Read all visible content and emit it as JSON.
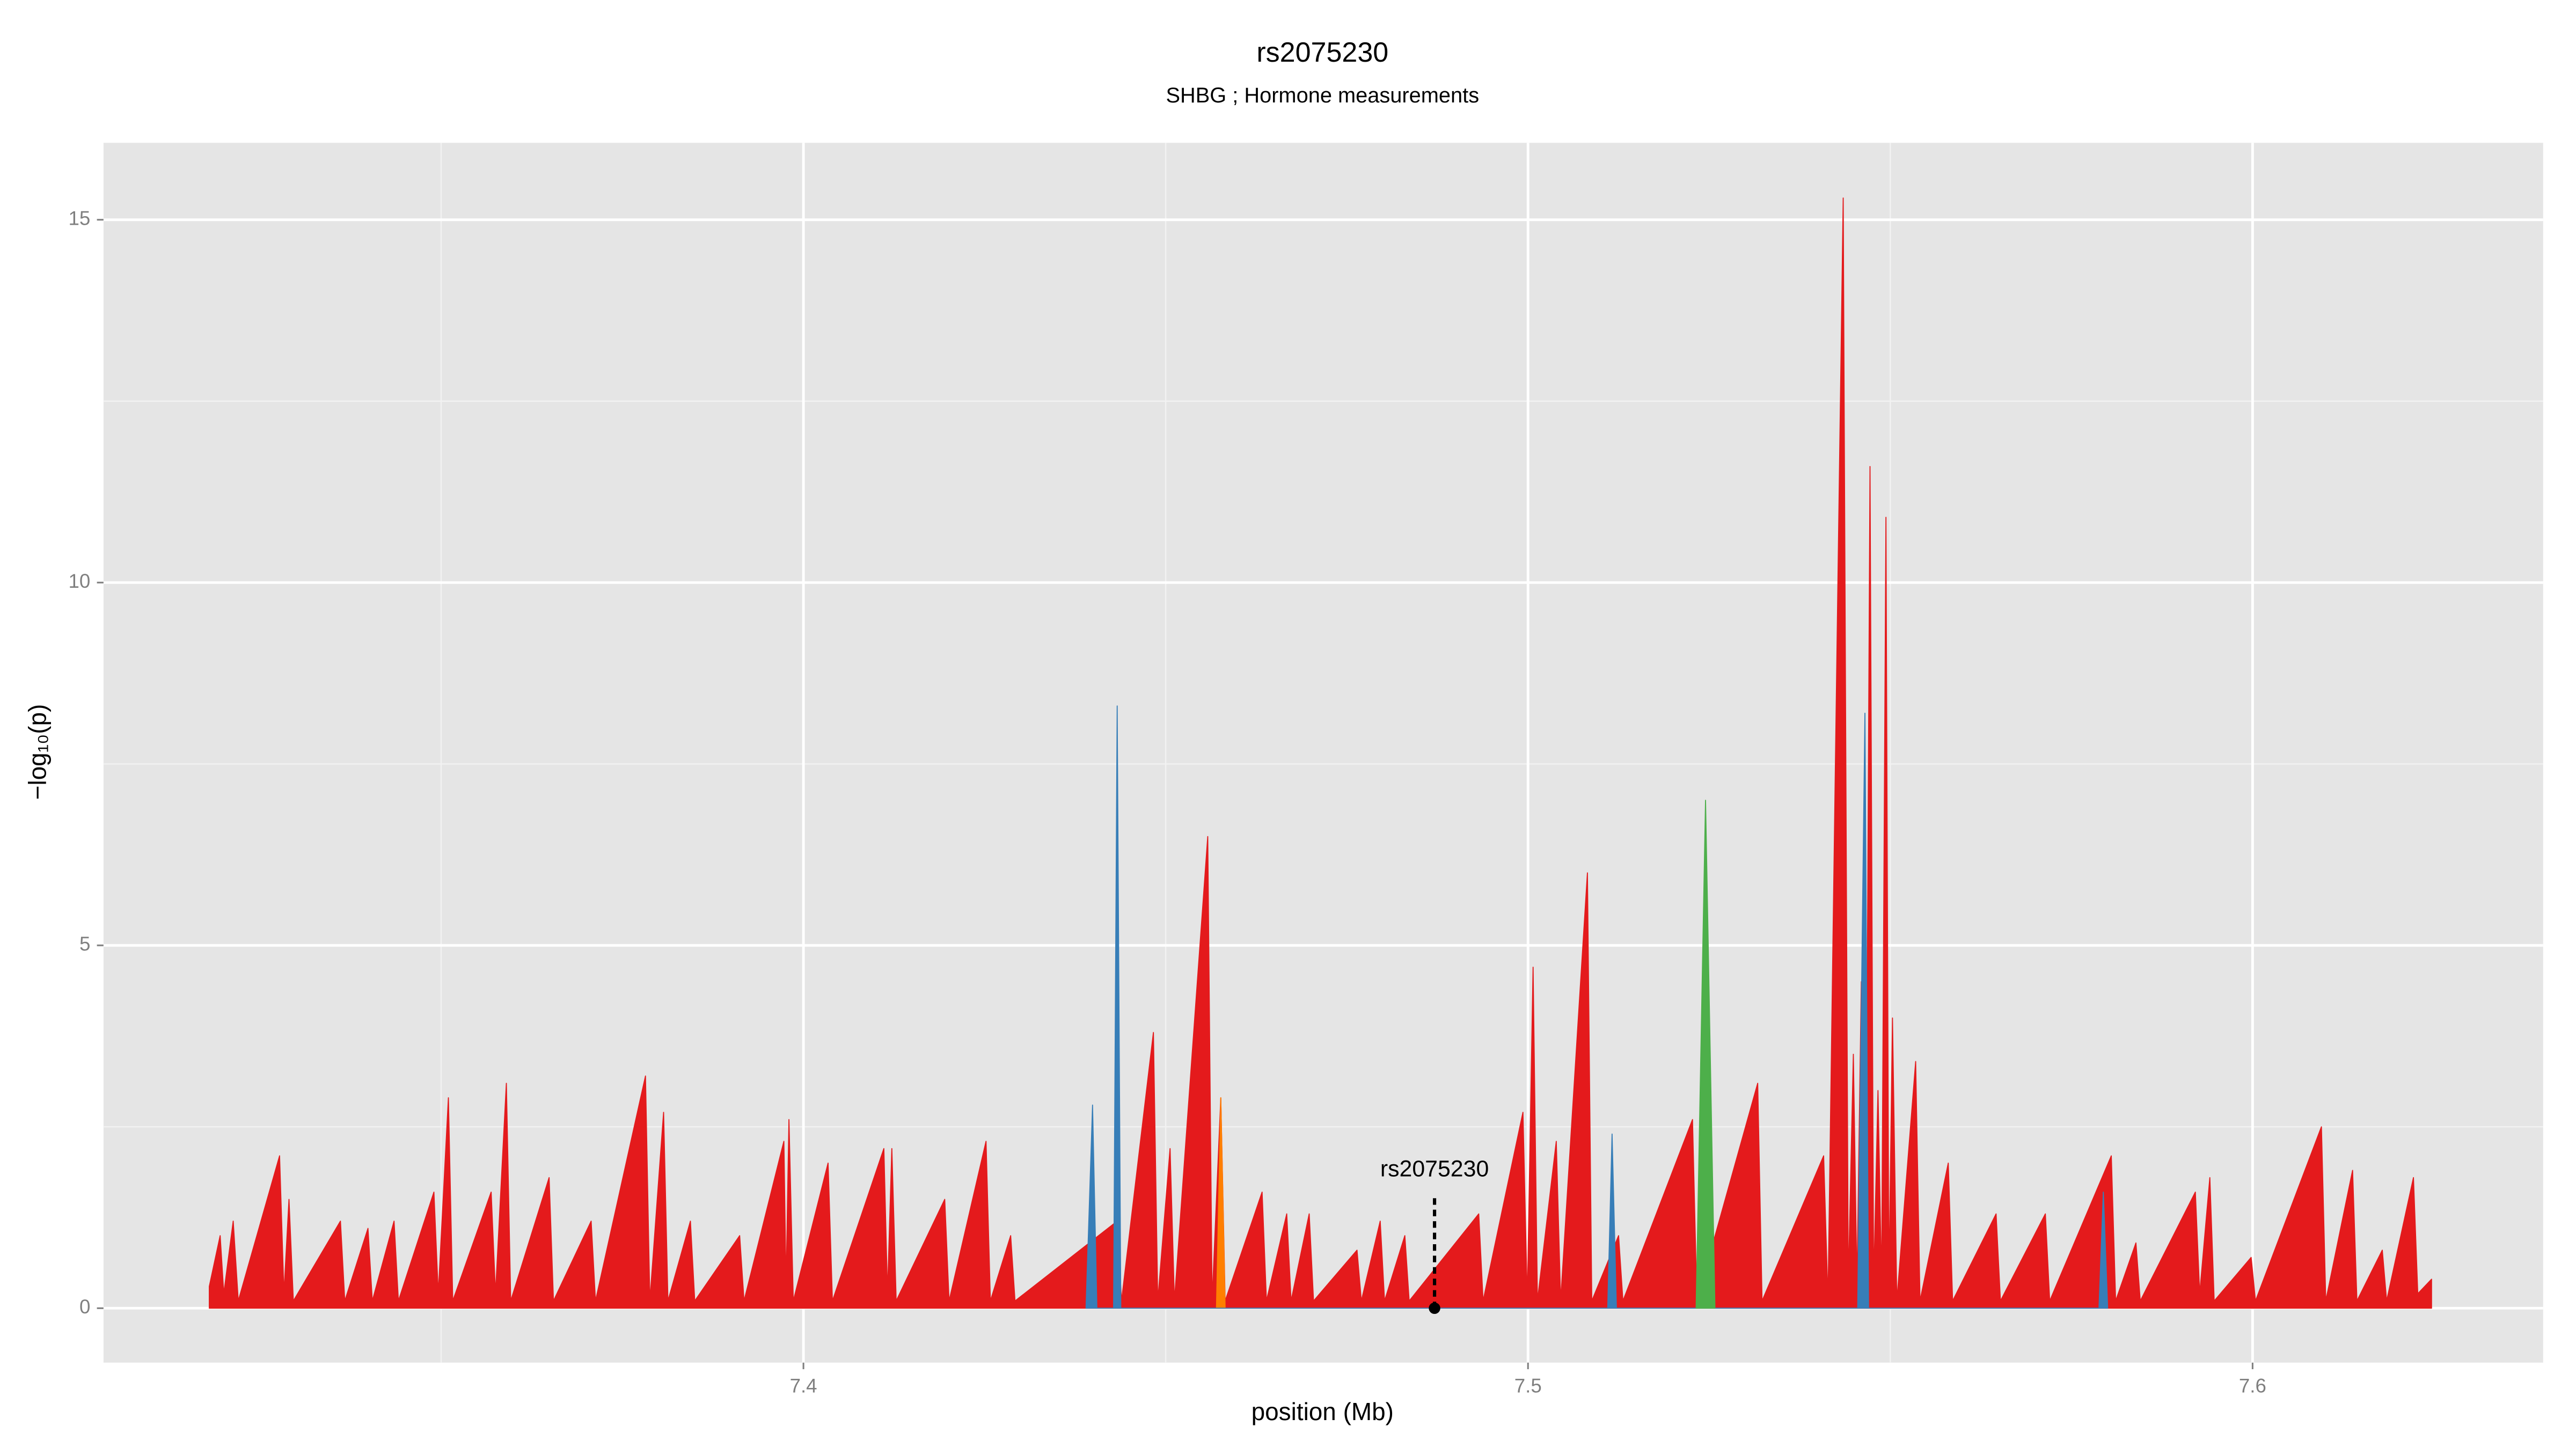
{
  "chart_data": {
    "type": "area",
    "title": "rs2075230",
    "subtitle": "SHBG ; Hormone measurements",
    "xlabel": "position (Mb)",
    "ylabel": "−log₁₀(p)",
    "xlim": [
      7.3034,
      7.6401
    ],
    "ylim": [
      -0.75,
      16.06
    ],
    "xticks": [
      7.4,
      7.5,
      7.6
    ],
    "yticks": [
      0,
      5,
      10,
      15
    ],
    "grid": true,
    "series": [
      {
        "color": "#e41a1c",
        "x": [
          7.318,
          7.3195,
          7.32,
          7.3213,
          7.322,
          7.3277,
          7.3283,
          7.329,
          7.3296,
          7.3361,
          7.3367,
          7.3399,
          7.3405,
          7.3435,
          7.3441,
          7.349,
          7.3496,
          7.351,
          7.3516,
          7.3569,
          7.3575,
          7.359,
          7.3596,
          7.3649,
          7.3655,
          7.3707,
          7.3713,
          7.3782,
          7.3788,
          7.3807,
          7.3813,
          7.3844,
          7.385,
          7.3912,
          7.3918,
          7.3973,
          7.3976,
          7.398,
          7.3986,
          7.4034,
          7.404,
          7.4111,
          7.4116,
          7.4122,
          7.4128,
          7.4195,
          7.4201,
          7.4252,
          7.4258,
          7.4286,
          7.4292,
          7.4433,
          7.4439,
          7.4483,
          7.4489,
          7.4506,
          7.4512,
          7.4558,
          7.4564,
          7.4576,
          7.4582,
          7.4633,
          7.4639,
          7.4667,
          7.4673,
          7.4698,
          7.4704,
          7.4764,
          7.477,
          7.4796,
          7.4802,
          7.483,
          7.4836,
          7.4932,
          7.4938,
          7.4993,
          7.4999,
          7.5007,
          7.5013,
          7.5039,
          7.5045,
          7.5082,
          7.5088,
          7.5125,
          7.5131,
          7.5227,
          7.5233,
          7.5317,
          7.5323,
          7.5408,
          7.5414,
          7.5435,
          7.5442,
          7.5449,
          7.5454,
          7.546,
          7.5466,
          7.5472,
          7.5477,
          7.5483,
          7.5488,
          7.5494,
          7.5498,
          7.5503,
          7.5509,
          7.5535,
          7.5541,
          7.558,
          7.5586,
          7.5646,
          7.5652,
          7.5714,
          7.572,
          7.5805,
          7.5811,
          7.5839,
          7.5845,
          7.5921,
          7.5927,
          7.5941,
          7.5947,
          7.5998,
          7.6004,
          7.6095,
          7.6101,
          7.6138,
          7.6144,
          7.6179,
          7.6185,
          7.6222,
          7.6228,
          7.6247
        ],
        "values": [
          0.3,
          1.0,
          0.2,
          1.2,
          0.1,
          2.1,
          0.2,
          1.5,
          0.1,
          1.2,
          0.1,
          1.1,
          0.1,
          1.2,
          0.1,
          1.6,
          0.2,
          2.9,
          0.1,
          1.6,
          0.2,
          3.1,
          0.1,
          1.8,
          0.1,
          1.2,
          0.1,
          3.2,
          0.1,
          2.7,
          0.1,
          1.2,
          0.1,
          1.0,
          0.1,
          2.3,
          0.3,
          2.6,
          0.1,
          2.0,
          0.1,
          2.2,
          0.2,
          2.2,
          0.1,
          1.5,
          0.1,
          2.3,
          0.1,
          1.0,
          0.1,
          1.2,
          0.1,
          3.8,
          0.1,
          2.2,
          0.1,
          6.5,
          0.1,
          2.9,
          0.1,
          1.6,
          0.1,
          1.3,
          0.1,
          1.3,
          0.1,
          0.8,
          0.1,
          1.2,
          0.1,
          1.0,
          0.1,
          1.3,
          0.1,
          2.7,
          0.1,
          4.7,
          0.1,
          2.3,
          0.1,
          6.0,
          0.1,
          1.0,
          0.1,
          2.6,
          0.1,
          3.1,
          0.1,
          2.1,
          0.1,
          15.3,
          0.3,
          3.5,
          0.3,
          4.5,
          0.3,
          11.6,
          0.3,
          3.0,
          0.3,
          10.9,
          0.3,
          4.0,
          0.1,
          3.4,
          0.1,
          2.0,
          0.1,
          1.3,
          0.1,
          1.3,
          0.1,
          2.1,
          0.1,
          0.9,
          0.1,
          1.6,
          0.2,
          1.8,
          0.1,
          0.7,
          0.1,
          2.5,
          0.1,
          1.9,
          0.1,
          0.8,
          0.1,
          1.8,
          0.2,
          0.4
        ]
      },
      {
        "color": "#ff7f00",
        "x": [
          7.457,
          7.4576,
          7.4582
        ],
        "values": [
          0,
          2.9,
          0
        ]
      },
      {
        "color": "#377eb8",
        "x": [
          7.439,
          7.4399,
          7.4405,
          7.4428,
          7.4433,
          7.4438,
          7.511,
          7.5116,
          7.5122,
          7.5455,
          7.5465,
          7.547,
          7.5788,
          7.5794,
          7.58
        ],
        "values": [
          0,
          2.8,
          0,
          0,
          8.3,
          0,
          0,
          2.4,
          0,
          0,
          8.2,
          0,
          0,
          1.6,
          0
        ]
      },
      {
        "color": "#4daf4a",
        "x": [
          7.5232,
          7.5245,
          7.5258
        ],
        "values": [
          0,
          7.0,
          0
        ]
      }
    ],
    "annotation": {
      "text": "rs2075230",
      "x": 7.4871,
      "y": 0
    }
  }
}
